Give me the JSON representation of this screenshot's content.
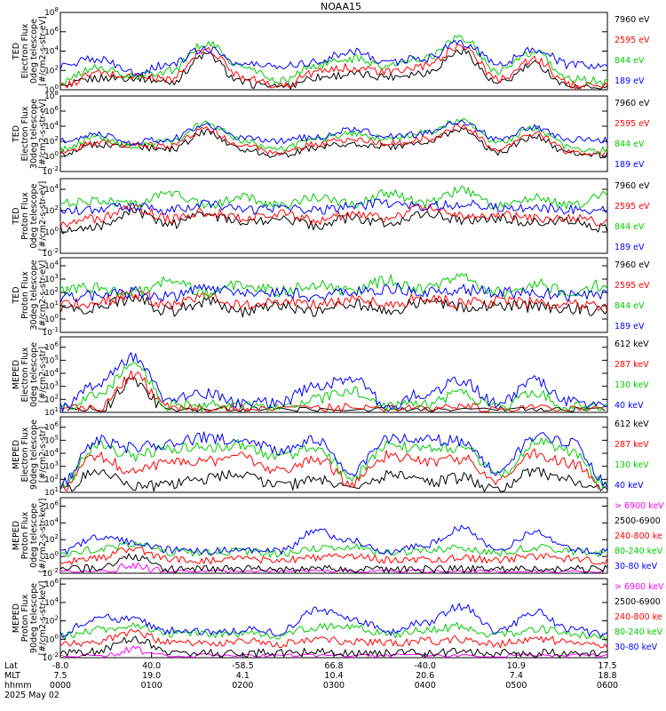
{
  "figure": {
    "title": "NOAA15",
    "date_label": "2025 May 02",
    "x_row_labels": [
      "Lat",
      "MLT",
      "hhmm"
    ],
    "x_ticks": [
      {
        "lat": "-8.0",
        "mlt": "7.5",
        "time": "0000"
      },
      {
        "lat": "40.0",
        "mlt": "19.0",
        "time": "0100"
      },
      {
        "lat": "-58.5",
        "mlt": "4.1",
        "time": "0200"
      },
      {
        "lat": "66.8",
        "mlt": "10.4",
        "time": "0300"
      },
      {
        "lat": "-40.0",
        "mlt": "20.6",
        "time": "0400"
      },
      {
        "lat": "10.9",
        "mlt": "7.4",
        "time": "0500"
      },
      {
        "lat": "17.5",
        "mlt": "18.8",
        "time": "0600"
      }
    ]
  },
  "chart_data": [
    {
      "type": "line",
      "log_scale": true,
      "ylabel": [
        "TED",
        "Electron Flux",
        "0deg telescope",
        "[#/cm2-s-str-eV]"
      ],
      "yticks": [
        0,
        2,
        4,
        6,
        8
      ],
      "ylim_exp": [
        0,
        8
      ],
      "x_range_hhmm": [
        "0000",
        "0600"
      ],
      "series": [
        {
          "name": "7960 eV",
          "color": "#000000",
          "profile": [
            0.18,
            1.2,
            1.3,
            0.8,
            3.6,
            0.7,
            0.15,
            1.3,
            1.6,
            1.4,
            1.8,
            4.0,
            0.6,
            2.6,
            0.2,
            0.2
          ]
        },
        {
          "name": "2595 eV",
          "color": "#ff0000",
          "profile": [
            0.3,
            1.7,
            1.4,
            1.1,
            4.1,
            1.4,
            0.3,
            1.8,
            2.3,
            1.8,
            2.4,
            4.6,
            1.1,
            3.1,
            0.5,
            0.3
          ]
        },
        {
          "name": "844 eV",
          "color": "#00cc00",
          "profile": [
            0.8,
            2.3,
            1.3,
            2.0,
            4.8,
            2.3,
            0.9,
            2.5,
            3.2,
            2.5,
            3.3,
            5.4,
            2.0,
            3.8,
            1.1,
            0.8
          ]
        },
        {
          "name": "189 eV",
          "color": "#0000ff",
          "profile": [
            2.5,
            3.2,
            1.8,
            2.6,
            4.3,
            2.6,
            2.5,
            2.9,
            4.0,
            2.9,
            3.2,
            4.9,
            2.7,
            4.2,
            2.5,
            2.5
          ]
        }
      ]
    },
    {
      "type": "line",
      "log_scale": true,
      "ylabel": [
        "TED",
        "Electron Flux",
        "30deg telescope",
        "[#/cm2-s-str-eV]"
      ],
      "yticks": [
        -2,
        0,
        2,
        4,
        6,
        8
      ],
      "ylim_exp": [
        -2,
        8
      ],
      "x_range_hhmm": [
        "0000",
        "0600"
      ],
      "series": [
        {
          "name": "7960 eV",
          "color": "#000000",
          "profile": [
            0.3,
            1.5,
            1.3,
            0.9,
            3.2,
            0.8,
            0.2,
            1.1,
            1.7,
            1.3,
            1.8,
            3.6,
            0.6,
            2.7,
            0.3,
            0.2
          ]
        },
        {
          "name": "2595 eV",
          "color": "#ff0000",
          "profile": [
            0.6,
            1.9,
            1.5,
            1.3,
            3.6,
            1.4,
            0.4,
            1.6,
            2.3,
            1.7,
            2.3,
            4.0,
            1.0,
            3.0,
            0.6,
            0.4
          ]
        },
        {
          "name": "844 eV",
          "color": "#00cc00",
          "profile": [
            1.0,
            2.5,
            1.4,
            2.0,
            4.4,
            2.0,
            0.9,
            2.3,
            3.0,
            2.3,
            3.1,
            4.8,
            1.8,
            3.7,
            1.1,
            0.9
          ]
        },
        {
          "name": "189 eV",
          "color": "#0000ff",
          "profile": [
            2.0,
            2.9,
            1.9,
            2.3,
            4.1,
            2.4,
            2.1,
            2.6,
            3.6,
            2.6,
            3.0,
            4.6,
            2.4,
            3.9,
            2.2,
            2.1
          ]
        }
      ]
    },
    {
      "type": "line",
      "log_scale": true,
      "ylabel": [
        "TED",
        "Proton Flux",
        "0deg telescope",
        "[#/cm2-s-str-eV]"
      ],
      "yticks": [
        -2,
        0,
        2,
        4
      ],
      "ylim_exp": [
        -2,
        5
      ],
      "x_range_hhmm": [
        "0000",
        "0600"
      ],
      "series": [
        {
          "name": "7960 eV",
          "color": "#000000",
          "profile": [
            0.2,
            0.6,
            1.9,
            0.7,
            1.6,
            0.8,
            1.3,
            0.6,
            1.3,
            0.8,
            1.8,
            1.1,
            1.3,
            0.9,
            1.0,
            0.3
          ]
        },
        {
          "name": "2595 eV",
          "color": "#ff0000",
          "profile": [
            0.8,
            1.2,
            2.3,
            1.2,
            1.9,
            1.3,
            1.8,
            1.1,
            1.7,
            1.3,
            2.2,
            1.5,
            1.7,
            1.3,
            1.4,
            0.9
          ]
        },
        {
          "name": "844 eV",
          "color": "#00cc00",
          "profile": [
            2.7,
            2.9,
            2.6,
            3.6,
            2.5,
            3.2,
            2.5,
            3.3,
            2.6,
            3.6,
            2.7,
            3.9,
            2.4,
            3.2,
            2.5,
            3.4
          ]
        },
        {
          "name": "189 eV",
          "color": "#0000ff",
          "profile": [
            1.9,
            2.1,
            2.4,
            2.0,
            2.6,
            2.0,
            2.3,
            2.0,
            2.4,
            2.7,
            2.4,
            2.6,
            2.3,
            2.3,
            2.1,
            2.0
          ]
        }
      ]
    },
    {
      "type": "line",
      "log_scale": true,
      "ylabel": [
        "TED",
        "Proton Flux",
        "30deg telescope",
        "[#/cm2-s-str-eV]"
      ],
      "yticks": [
        -1,
        0,
        1,
        2,
        3,
        4
      ],
      "ylim_exp": [
        -1,
        4.6
      ],
      "x_range_hhmm": [
        "0000",
        "0600"
      ],
      "series": [
        {
          "name": "7960 eV",
          "color": "#000000",
          "profile": [
            0.6,
            0.9,
            1.5,
            0.6,
            1.3,
            0.6,
            1.0,
            0.6,
            1.1,
            0.7,
            1.3,
            0.8,
            1.0,
            0.9,
            0.8,
            0.5
          ]
        },
        {
          "name": "2595 eV",
          "color": "#ff0000",
          "profile": [
            1.0,
            1.3,
            1.9,
            1.0,
            1.6,
            1.0,
            1.4,
            1.0,
            1.4,
            1.1,
            1.6,
            1.2,
            1.4,
            1.2,
            1.2,
            0.9
          ]
        },
        {
          "name": "844 eV",
          "color": "#00cc00",
          "profile": [
            2.2,
            2.3,
            2.0,
            2.9,
            2.0,
            2.6,
            2.1,
            2.6,
            2.1,
            2.9,
            2.2,
            3.1,
            2.0,
            2.6,
            2.1,
            2.6
          ]
        },
        {
          "name": "189 eV",
          "color": "#0000ff",
          "profile": [
            1.6,
            1.8,
            2.0,
            1.7,
            2.2,
            1.8,
            2.0,
            1.7,
            2.1,
            2.3,
            2.1,
            2.2,
            2.0,
            2.0,
            1.8,
            1.7
          ]
        }
      ]
    },
    {
      "type": "line",
      "log_scale": true,
      "ylabel": [
        "MEPED",
        "Electron Flux",
        "0deg telescope",
        "[#/cm2-s-str]"
      ],
      "yticks": [
        1,
        2,
        3,
        4,
        5,
        6
      ],
      "ylim_exp": [
        1,
        6.8
      ],
      "x_range_hhmm": [
        "0000",
        "0600"
      ],
      "series": [
        {
          "name": "612 keV",
          "color": "#000000",
          "profile": [
            1.0,
            1.1,
            3.4,
            1.0,
            1.0,
            1.0,
            1.0,
            1.0,
            1.0,
            1.0,
            1.0,
            1.0,
            1.0,
            1.0,
            1.0,
            1.0
          ]
        },
        {
          "name": "287 keV",
          "color": "#ff0000",
          "profile": [
            1.1,
            1.4,
            3.8,
            1.3,
            1.2,
            1.2,
            1.1,
            1.2,
            1.3,
            1.2,
            1.1,
            1.3,
            1.1,
            1.2,
            1.2,
            1.1
          ]
        },
        {
          "name": "130 keV",
          "color": "#00cc00",
          "profile": [
            1.2,
            2.2,
            4.9,
            1.5,
            1.5,
            1.6,
            1.3,
            2.0,
            2.6,
            1.4,
            1.6,
            2.5,
            1.3,
            2.4,
            1.4,
            1.2
          ]
        },
        {
          "name": "40 keV",
          "color": "#0000ff",
          "profile": [
            1.4,
            3.2,
            5.2,
            2.0,
            2.4,
            1.6,
            1.8,
            3.0,
            3.6,
            1.5,
            2.5,
            3.4,
            1.6,
            3.5,
            1.8,
            1.3
          ]
        }
      ]
    },
    {
      "type": "line",
      "log_scale": true,
      "ylabel": [
        "MEPED",
        "Electron Flux",
        "90deg telescope",
        "[#/cm2-s-str]"
      ],
      "yticks": [
        1,
        2,
        3,
        4,
        5,
        6
      ],
      "ylim_exp": [
        1,
        6.8
      ],
      "x_range_hhmm": [
        "0000",
        "0600"
      ],
      "series": [
        {
          "name": "612 keV",
          "color": "#000000",
          "profile": [
            1.1,
            2.6,
            1.4,
            1.6,
            2.0,
            2.5,
            1.4,
            2.0,
            1.2,
            2.3,
            1.8,
            2.1,
            1.2,
            2.6,
            1.9,
            1.1
          ]
        },
        {
          "name": "287 keV",
          "color": "#ff0000",
          "profile": [
            1.2,
            3.8,
            2.6,
            3.3,
            3.4,
            3.7,
            2.6,
            3.6,
            1.8,
            3.8,
            3.3,
            3.6,
            1.8,
            3.9,
            3.2,
            1.2
          ]
        },
        {
          "name": "130 keV",
          "color": "#00cc00",
          "profile": [
            1.4,
            4.6,
            3.8,
            4.3,
            4.5,
            4.6,
            3.7,
            4.5,
            2.2,
            4.7,
            4.3,
            4.5,
            2.2,
            4.8,
            4.2,
            1.4
          ]
        },
        {
          "name": "40 keV",
          "color": "#0000ff",
          "profile": [
            1.7,
            5.0,
            4.4,
            4.8,
            5.2,
            5.0,
            4.3,
            5.0,
            2.6,
            5.2,
            5.0,
            5.0,
            2.6,
            5.3,
            4.8,
            1.8
          ]
        }
      ]
    },
    {
      "type": "line",
      "log_scale": true,
      "ylabel": [
        "MEPED",
        "Proton Flux",
        "0deg telescope",
        "[#/cm2-s-str-keV]"
      ],
      "yticks": [
        -2,
        0,
        2,
        4,
        6
      ],
      "ylim_exp": [
        -2,
        7
      ],
      "x_range_hhmm": [
        "0000",
        "0600"
      ],
      "series": [
        {
          "name": "> 6900 keV",
          "color": "#ff00ff",
          "profile": [
            -2,
            -2,
            -1.0,
            -2,
            -2,
            -2,
            -2,
            -2,
            -2,
            -2,
            -2,
            -2,
            -2,
            -2,
            -2,
            -2
          ]
        },
        {
          "name": "2500-6900",
          "color": "#000000",
          "profile": [
            -1.5,
            -1.4,
            0.0,
            -1.5,
            -1.5,
            -1.5,
            -1.5,
            -1.5,
            -1.5,
            -1.5,
            -1.5,
            -1.5,
            -1.5,
            -1.5,
            -1.5,
            -1.5
          ]
        },
        {
          "name": "240-800 ke",
          "color": "#ff0000",
          "profile": [
            -0.6,
            -0.2,
            0.9,
            -0.4,
            -0.5,
            -0.3,
            -0.5,
            -0.1,
            0.0,
            -0.4,
            -0.3,
            -0.2,
            -0.5,
            0.0,
            -0.3,
            -0.6
          ]
        },
        {
          "name": "80-240 keV",
          "color": "#00cc00",
          "profile": [
            0.3,
            0.8,
            1.4,
            0.5,
            0.4,
            0.6,
            0.3,
            1.0,
            1.2,
            0.4,
            0.7,
            1.1,
            0.4,
            1.1,
            0.6,
            0.3
          ]
        },
        {
          "name": "30-80 keV",
          "color": "#0000ff",
          "profile": [
            0.5,
            2.2,
            1.8,
            0.8,
            0.7,
            0.8,
            0.6,
            3.0,
            1.8,
            0.6,
            1.3,
            3.4,
            0.7,
            2.9,
            0.8,
            0.5
          ]
        }
      ]
    },
    {
      "type": "line",
      "log_scale": true,
      "ylabel": [
        "MEPED",
        "Proton Flux",
        "90deg telescope",
        "[#/cm2-s-str-keV]"
      ],
      "yticks": [
        -2,
        0,
        2,
        4,
        6
      ],
      "ylim_exp": [
        -2,
        6.6
      ],
      "x_range_hhmm": [
        "0000",
        "0600"
      ],
      "series": [
        {
          "name": "> 6900 keV",
          "color": "#ff00ff",
          "profile": [
            -2,
            -2,
            -1.1,
            -2,
            -2,
            -2,
            -2,
            -2,
            -2,
            -2,
            -2,
            -2,
            -2,
            -2,
            -2,
            -2
          ]
        },
        {
          "name": "2500-6900",
          "color": "#000000",
          "profile": [
            -1.5,
            -1.3,
            0.1,
            -1.5,
            -1.5,
            -1.5,
            -1.5,
            -1.4,
            -1.5,
            -1.5,
            -1.5,
            -1.4,
            -1.5,
            -1.5,
            -1.5,
            -1.5
          ]
        },
        {
          "name": "240-800 ke",
          "color": "#ff0000",
          "profile": [
            -0.6,
            -0.3,
            0.8,
            -0.4,
            -0.4,
            -0.2,
            -0.5,
            0.0,
            -0.2,
            -0.4,
            -0.2,
            0.0,
            -0.5,
            0.1,
            -0.3,
            -0.6
          ]
        },
        {
          "name": "80-240 keV",
          "color": "#00cc00",
          "profile": [
            0.3,
            1.0,
            1.5,
            0.6,
            0.6,
            0.6,
            0.4,
            1.3,
            1.4,
            0.5,
            1.0,
            1.4,
            0.4,
            1.2,
            0.6,
            0.3
          ]
        },
        {
          "name": "30-80 keV",
          "color": "#0000ff",
          "profile": [
            0.6,
            2.4,
            2.1,
            0.9,
            0.9,
            1.0,
            0.8,
            3.2,
            2.3,
            0.8,
            1.8,
            3.6,
            0.8,
            3.0,
            1.0,
            0.6
          ]
        }
      ]
    }
  ]
}
